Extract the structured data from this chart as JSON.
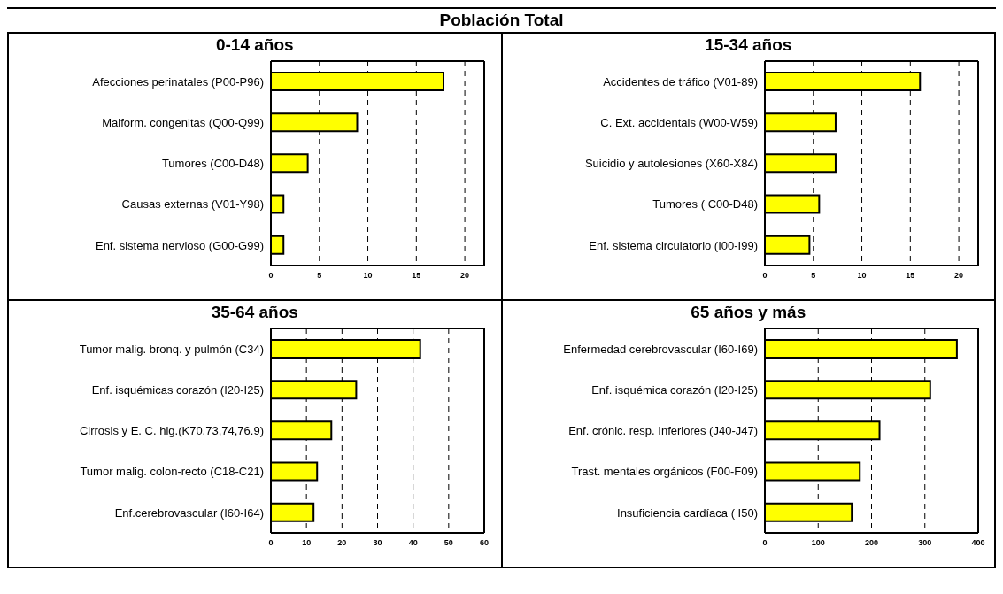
{
  "chart_data": [
    {
      "type": "bar",
      "orientation": "horizontal",
      "title": "Población Total",
      "subtitle": "0-14 años",
      "categories": [
        "Afecciones perinatales (P00-P96)",
        "Malform. congenitas (Q00-Q99)",
        "Tumores (C00-D48)",
        "Causas externas (V01-Y98)",
        "Enf. sistema nervioso (G00-G99)"
      ],
      "values": [
        17.8,
        8.9,
        3.8,
        1.3,
        1.3
      ],
      "color": "#ffff00",
      "xlim": [
        0,
        22
      ],
      "xticks": [
        0,
        5,
        10,
        15,
        20
      ],
      "grid": "x"
    },
    {
      "type": "bar",
      "orientation": "horizontal",
      "title": "15-34 años",
      "categories": [
        "Accidentes de tráfico (V01-89)",
        "C. Ext. accidentals (W00-W59)",
        "Suicidio y autolesiones (X60-X84)",
        "Tumores ( C00-D48)",
        "Enf. sistema circulatorio (I00-I99)"
      ],
      "values": [
        16.0,
        7.3,
        7.3,
        5.6,
        4.6
      ],
      "color": "#ffff00",
      "xlim": [
        0,
        22
      ],
      "xticks": [
        0,
        5,
        10,
        15,
        20
      ],
      "grid": "x"
    },
    {
      "type": "bar",
      "orientation": "horizontal",
      "title": "35-64 años",
      "categories": [
        "Tumor malig. bronq. y pulmón (C34)",
        "Enf. isquémicas corazón (I20-I25)",
        "Cirrosis y E. C. hig.(K70,73,74,76.9)",
        "Tumor malig. colon-recto (C18-C21)",
        "Enf.cerebrovascular (I60-I64)"
      ],
      "values": [
        42,
        24,
        17,
        13,
        12
      ],
      "color": "#ffff00",
      "xlim": [
        0,
        60
      ],
      "xticks": [
        0,
        10,
        20,
        30,
        40,
        50,
        60
      ],
      "grid": "x"
    },
    {
      "type": "bar",
      "orientation": "horizontal",
      "title": "65 años y más",
      "categories": [
        "Enfermedad cerebrovascular (I60-I69)",
        "Enf. isquémica corazón (I20-I25)",
        "Enf. crónic. resp. Inferiores (J40-J47)",
        "Trast. mentales orgánicos (F00-F09)",
        "Insuficiencia cardíaca ( I50)"
      ],
      "values": [
        360,
        310,
        215,
        178,
        163
      ],
      "color": "#ffff00",
      "xlim": [
        0,
        400
      ],
      "xticks": [
        0,
        100,
        200,
        300,
        400
      ],
      "grid": "x"
    }
  ]
}
